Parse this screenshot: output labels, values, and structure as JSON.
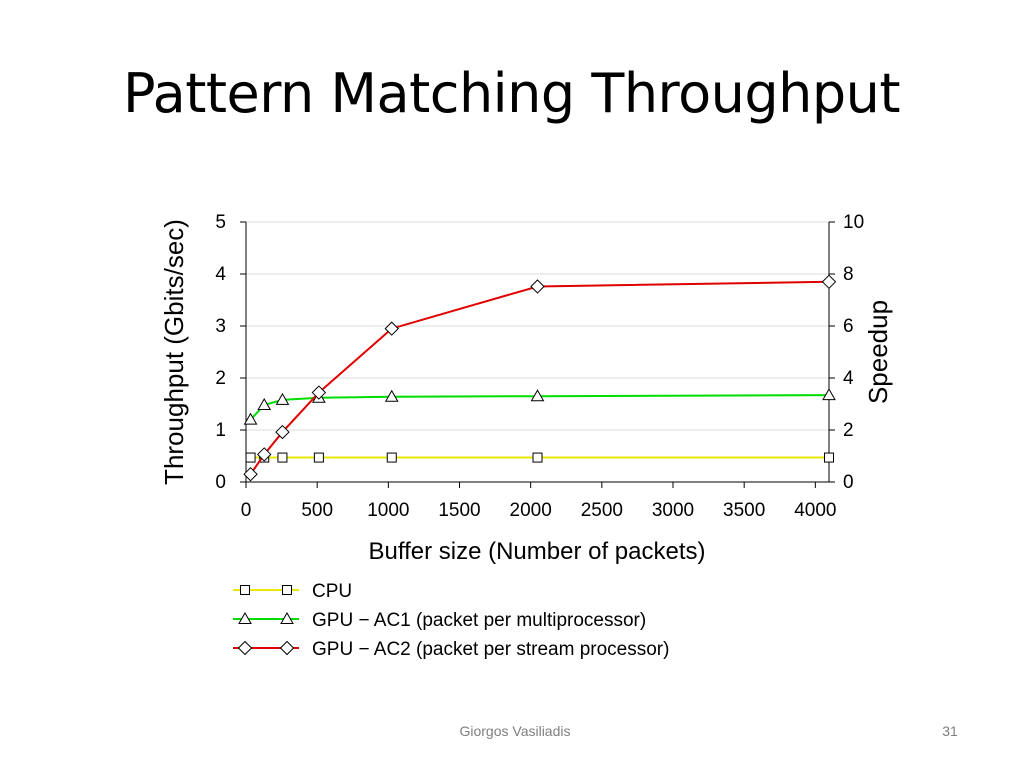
{
  "slide": {
    "title": "Pattern Matching Throughput",
    "author": "Giorgos Vasiliadis",
    "page_number": "31"
  },
  "chart_data": {
    "type": "line",
    "xlabel": "Buffer size (Number of packets)",
    "ylabel": "Throughput (Gbits/sec)",
    "y2label": "Speedup",
    "xlim": [
      0,
      4096
    ],
    "ylim": [
      0,
      5
    ],
    "y2lim": [
      0,
      10
    ],
    "xticks": [
      0,
      500,
      1000,
      1500,
      2000,
      2500,
      3000,
      3500,
      4000
    ],
    "yticks": [
      0,
      1,
      2,
      3,
      4,
      5
    ],
    "y2ticks": [
      0,
      2,
      4,
      6,
      8,
      10
    ],
    "grid": true,
    "legend_position": "below",
    "series": [
      {
        "name": "CPU",
        "color": "#e8e800",
        "marker": "square",
        "x": [
          32,
          128,
          256,
          512,
          1024,
          2048,
          4096
        ],
        "y": [
          0.47,
          0.47,
          0.47,
          0.47,
          0.47,
          0.47,
          0.47
        ]
      },
      {
        "name": "GPU − AC1 (packet per multiprocessor)",
        "color": "#00dd00",
        "marker": "triangle",
        "x": [
          32,
          128,
          256,
          512,
          1024,
          2048,
          4096
        ],
        "y": [
          1.2,
          1.48,
          1.58,
          1.62,
          1.64,
          1.65,
          1.67
        ]
      },
      {
        "name": "GPU − AC2 (packet per stream processor)",
        "color": "#e00000",
        "marker": "diamond",
        "x": [
          32,
          128,
          256,
          512,
          1024,
          2048,
          4096
        ],
        "y": [
          0.15,
          0.53,
          0.96,
          1.72,
          2.95,
          3.76,
          3.85
        ]
      }
    ]
  }
}
